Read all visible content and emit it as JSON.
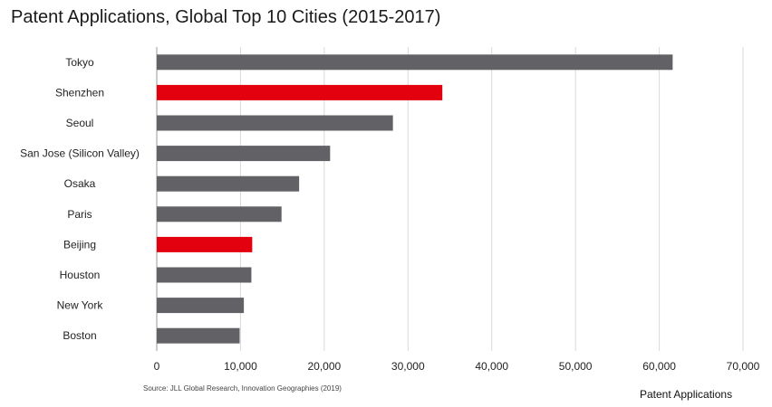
{
  "page": {
    "title": "Patent Applications, Global Top 10 Cities (2015-2017)",
    "source": "Source: JLL Global Research, Innovation Geographies (2019)"
  },
  "colors": {
    "default_bar": "#626266",
    "highlight_bar": "#e3000f",
    "grid": "#d9d9d9",
    "axis": "#9a9a9a"
  },
  "chart_data": {
    "type": "bar",
    "orientation": "horizontal",
    "title": "Patent Applications, Global Top 10 Cities (2015-2017)",
    "xlabel": "Patent Applications",
    "ylabel": "",
    "categories": [
      "Tokyo",
      "Shenzhen",
      "Seoul",
      "San Jose (Silicon Valley)",
      "Osaka",
      "Paris",
      "Beijing",
      "Houston",
      "New York",
      "Boston"
    ],
    "values": [
      61600,
      34100,
      28200,
      20700,
      17000,
      14900,
      11400,
      11300,
      10400,
      9900
    ],
    "highlighted": [
      "Shenzhen",
      "Beijing"
    ],
    "xlim": [
      0,
      70000
    ],
    "ticks": [
      0,
      10000,
      20000,
      30000,
      40000,
      50000,
      60000,
      70000
    ],
    "tick_labels": [
      "0",
      "10,000",
      "20,000",
      "30,000",
      "40,000",
      "50,000",
      "60,000",
      "70,000"
    ],
    "grid": true,
    "legend": "none"
  }
}
